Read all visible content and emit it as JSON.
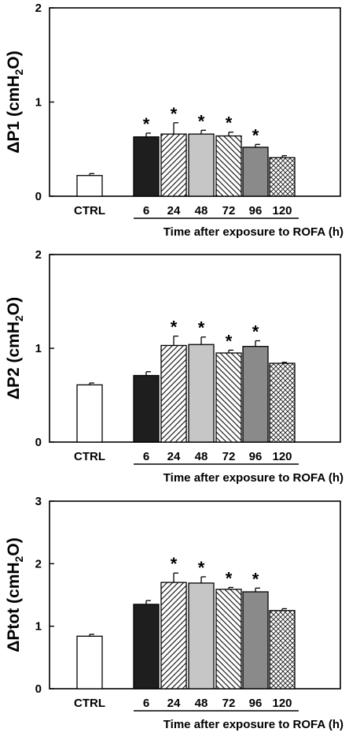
{
  "palette": {
    "ctrl": "#ffffff",
    "black": "#1e1e1e",
    "light_gray": "#c6c6c6",
    "dark_gray": "#8a8a8a",
    "hatch": "#ffffff",
    "axis": "#000000"
  },
  "chart_data": [
    {
      "type": "bar",
      "ylabel": "ΔP1 (cmH2O)",
      "ylabel_parts": [
        "ΔP1 (cmH",
        "2",
        "O)"
      ],
      "xlabel": "Time after exposure to ROFA (h)",
      "ylim": [
        0,
        2
      ],
      "yticks": [
        "0",
        "1",
        "2"
      ],
      "categories": [
        "CTRL",
        "6",
        "24",
        "48",
        "72",
        "96",
        "120"
      ],
      "values": [
        0.22,
        0.63,
        0.66,
        0.66,
        0.64,
        0.52,
        0.41
      ],
      "errors": [
        0.02,
        0.04,
        0.12,
        0.04,
        0.04,
        0.03,
        0.02
      ],
      "significant": [
        false,
        true,
        true,
        true,
        true,
        true,
        false
      ],
      "significance_marker": "*",
      "fills": [
        "white",
        "black",
        "diagonal",
        "light-gray",
        "back-diagonal",
        "dark-gray",
        "crosshatch"
      ]
    },
    {
      "type": "bar",
      "ylabel": "ΔP2 (cmH2O)",
      "ylabel_parts": [
        "ΔP2 (cmH",
        "2",
        "O)"
      ],
      "xlabel": "Time after exposure to ROFA (h)",
      "ylim": [
        0,
        2
      ],
      "yticks": [
        "0",
        "1",
        "2"
      ],
      "categories": [
        "CTRL",
        "6",
        "24",
        "48",
        "72",
        "96",
        "120"
      ],
      "values": [
        0.61,
        0.71,
        1.03,
        1.04,
        0.95,
        1.02,
        0.84
      ],
      "errors": [
        0.02,
        0.04,
        0.1,
        0.08,
        0.03,
        0.06,
        0.01
      ],
      "significant": [
        false,
        false,
        true,
        true,
        true,
        true,
        false
      ],
      "significance_marker": "*",
      "fills": [
        "white",
        "black",
        "diagonal",
        "light-gray",
        "back-diagonal",
        "dark-gray",
        "crosshatch"
      ]
    },
    {
      "type": "bar",
      "ylabel": "ΔPtot (cmH2O)",
      "ylabel_parts": [
        "ΔPtot (cmH",
        "2",
        "O)"
      ],
      "xlabel": "Time after exposure to ROFA (h)",
      "ylim": [
        0,
        3
      ],
      "yticks": [
        "0",
        "1",
        "2",
        "3"
      ],
      "categories": [
        "CTRL",
        "6",
        "24",
        "48",
        "72",
        "96",
        "120"
      ],
      "values": [
        0.84,
        1.35,
        1.7,
        1.69,
        1.59,
        1.55,
        1.25
      ],
      "errors": [
        0.03,
        0.06,
        0.15,
        0.1,
        0.03,
        0.06,
        0.03
      ],
      "significant": [
        false,
        false,
        true,
        true,
        true,
        true,
        false
      ],
      "significance_marker": "*",
      "fills": [
        "white",
        "black",
        "diagonal",
        "light-gray",
        "back-diagonal",
        "dark-gray",
        "crosshatch"
      ]
    }
  ]
}
